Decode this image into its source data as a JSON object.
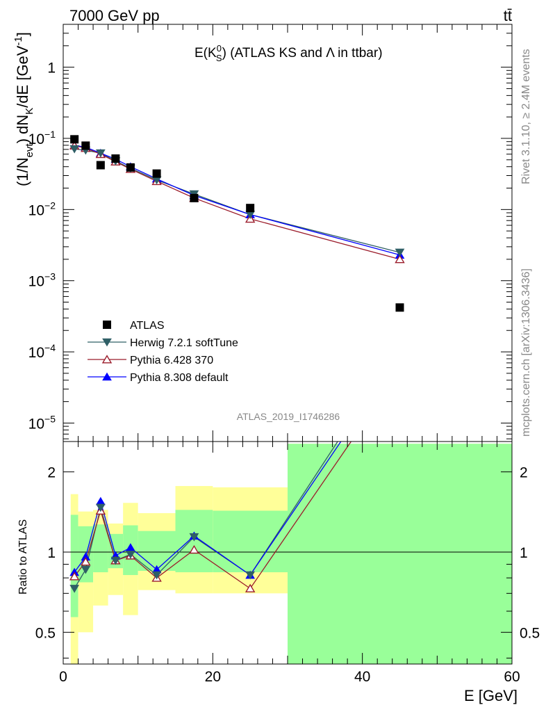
{
  "header": {
    "left": "7000 GeV pp",
    "right": "tt̄"
  },
  "side_text": {
    "rivet": "Rivet 3.1.10, ≥ 2.4M events",
    "mcplots": "mcplots.cern.ch [arXiv:1306.3436]"
  },
  "chart_data": [
    {
      "type": "scatter",
      "panel": "main",
      "title": "E(K_S^0) (ATLAS KS and Λ in ttbar)",
      "title_parts": {
        "main": "E(K",
        "sup": "0",
        "sub": "S",
        "rest": ") (ATLAS KS and Λ in ttbar)"
      },
      "ylabel": "(1/N_evt) dN_K/dE [GeV^-1]",
      "ylabel_parts": {
        "a": "(1/N",
        "a_sub": "evt",
        "b": ") dN",
        "b_sub": "K",
        "c": "/dE [GeV",
        "c_sup": "-1",
        "d": "]"
      },
      "analysis_label": "ATLAS_2019_I1746286",
      "y_scale": "log",
      "ylim": [
        5.5e-06,
        4
      ],
      "xlim": [
        0,
        60
      ],
      "y_ticks": [
        {
          "value": 1,
          "label": "1"
        },
        {
          "value": 0.1,
          "label": "10^-1",
          "base": "10",
          "exp": "−1"
        },
        {
          "value": 0.01,
          "label": "10^-2",
          "base": "10",
          "exp": "−2"
        },
        {
          "value": 0.001,
          "label": "10^-3",
          "base": "10",
          "exp": "−3"
        },
        {
          "value": 0.0001,
          "label": "10^-4",
          "base": "10",
          "exp": "−4"
        },
        {
          "value": 1e-05,
          "label": "10^-5",
          "base": "10",
          "exp": "−5"
        }
      ],
      "legend_position": "lower-left",
      "series": [
        {
          "name": "ATLAS",
          "color": "#000000",
          "marker": "square",
          "x": [
            1.5,
            3,
            5,
            7,
            9,
            12.5,
            17.5,
            25,
            45
          ],
          "y": [
            0.097,
            0.079,
            0.042,
            0.052,
            0.039,
            0.032,
            0.0145,
            0.0105,
            0.00042
          ]
        },
        {
          "name": "Herwig 7.2.1 softTune",
          "color": "#2f5f66",
          "marker": "triangle-down",
          "x": [
            1.5,
            3,
            5,
            7,
            9,
            12.5,
            17.5,
            25,
            45
          ],
          "y": [
            0.071,
            0.068,
            0.062,
            0.048,
            0.038,
            0.026,
            0.0165,
            0.0085,
            0.0025
          ]
        },
        {
          "name": "Pythia 6.428 370",
          "color": "#9b1c2b",
          "marker": "triangle-open",
          "x": [
            1.5,
            3,
            5,
            7,
            9,
            12.5,
            17.5,
            25,
            45
          ],
          "y": [
            0.079,
            0.073,
            0.06,
            0.047,
            0.037,
            0.025,
            0.0145,
            0.0074,
            0.002
          ]
        },
        {
          "name": "Pythia 8.308 default",
          "color": "#0000ff",
          "marker": "triangle-up",
          "x": [
            1.5,
            3,
            5,
            7,
            9,
            12.5,
            17.5,
            25,
            45
          ],
          "y": [
            0.08,
            0.075,
            0.062,
            0.051,
            0.04,
            0.027,
            0.0158,
            0.0085,
            0.0023
          ]
        }
      ]
    },
    {
      "type": "line",
      "panel": "ratio",
      "ylabel": "Ratio to ATLAS",
      "xlabel": "E [GeV]",
      "y_scale": "log",
      "ylim": [
        0.38,
        2.6
      ],
      "xlim": [
        0,
        60
      ],
      "x_ticks": [
        0,
        20,
        40,
        60
      ],
      "y_ticks": [
        0.5,
        1,
        2
      ],
      "reference_line": 1,
      "bands": {
        "bins": [
          [
            1,
            2
          ],
          [
            2,
            4
          ],
          [
            4,
            6
          ],
          [
            6,
            8
          ],
          [
            8,
            10
          ],
          [
            10,
            15
          ],
          [
            15,
            20
          ],
          [
            20,
            30
          ],
          [
            30,
            60
          ]
        ],
        "yellow": [
          [
            0.37,
            1.65
          ],
          [
            0.5,
            1.42
          ],
          [
            0.63,
            1.44
          ],
          [
            0.69,
            1.28
          ],
          [
            0.58,
            1.53
          ],
          [
            0.72,
            1.4
          ],
          [
            0.7,
            1.77
          ],
          [
            0.7,
            1.75
          ],
          [
            0.37,
            2.55
          ]
        ],
        "green": [
          [
            0.57,
            1.38
          ],
          [
            0.77,
            1.25
          ],
          [
            0.84,
            1.27
          ],
          [
            0.87,
            1.17
          ],
          [
            0.82,
            1.26
          ],
          [
            0.85,
            1.2
          ],
          [
            0.84,
            1.44
          ],
          [
            0.84,
            1.43
          ],
          [
            0.37,
            2.55
          ]
        ]
      },
      "series": [
        {
          "name": "Herwig 7.2.1 softTune",
          "color": "#2f5f66",
          "marker": "triangle-down",
          "x": [
            1.5,
            3,
            5,
            7,
            9,
            12.5,
            17.5,
            25,
            45
          ],
          "y": [
            0.73,
            0.86,
            1.47,
            0.93,
            0.98,
            0.82,
            1.14,
            0.82,
            5.9
          ]
        },
        {
          "name": "Pythia 6.428 370",
          "color": "#9b1c2b",
          "marker": "triangle-open",
          "x": [
            1.5,
            3,
            5,
            7,
            9,
            12.5,
            17.5,
            25,
            45
          ],
          "y": [
            0.81,
            0.92,
            1.43,
            0.93,
            0.97,
            0.8,
            1.02,
            0.73,
            4.8
          ]
        },
        {
          "name": "Pythia 8.308 default",
          "color": "#0000ff",
          "marker": "triangle-up",
          "x": [
            1.5,
            3,
            5,
            7,
            9,
            12.5,
            17.5,
            25,
            45
          ],
          "y": [
            0.84,
            0.96,
            1.55,
            0.97,
            1.04,
            0.86,
            1.15,
            0.82,
            5.5
          ]
        }
      ]
    }
  ]
}
